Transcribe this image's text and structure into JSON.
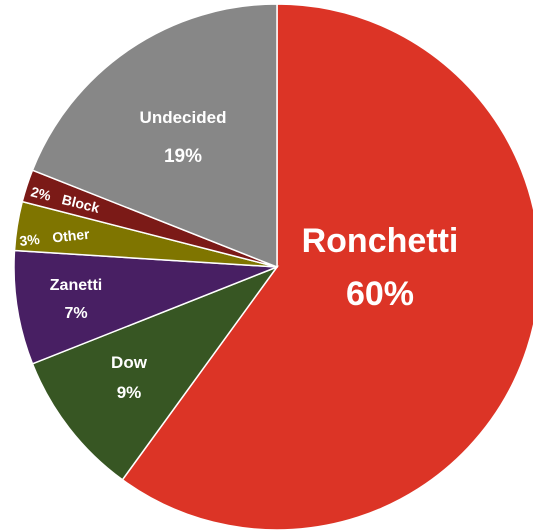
{
  "chart_data": {
    "type": "pie",
    "title": "",
    "slices": [
      {
        "name": "Ronchetti",
        "value": 60,
        "label": "60%",
        "color": "#dc3426"
      },
      {
        "name": "Dow",
        "value": 9,
        "label": "9%",
        "color": "#375623"
      },
      {
        "name": "Zanetti",
        "value": 7,
        "label": "7%",
        "color": "#481f63"
      },
      {
        "name": "Other",
        "value": 3,
        "label": "3%",
        "color": "#7f7500"
      },
      {
        "name": "Block",
        "value": 2,
        "label": "2%",
        "color": "#7b1a17"
      },
      {
        "name": "Undecided",
        "value": 19,
        "label": "19%",
        "color": "#878787"
      }
    ],
    "start_angle": "12 o'clock, clockwise",
    "legend": "none",
    "labels": "inside slices"
  }
}
